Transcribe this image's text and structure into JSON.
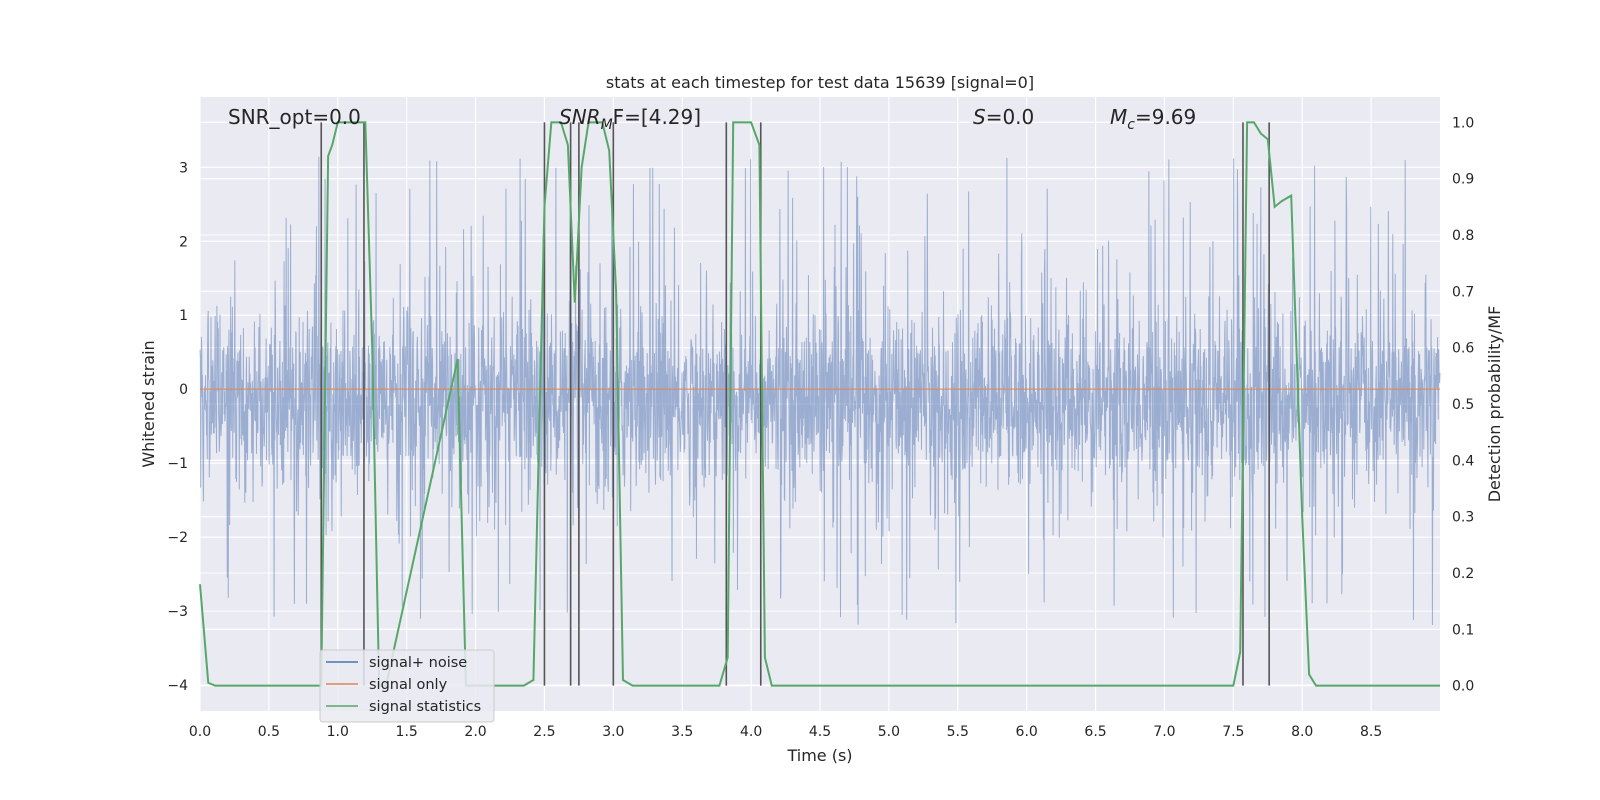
{
  "chart_data": {
    "type": "line",
    "title": "stats at each timestep for test data 15639 [signal=0]",
    "xlabel": "Time (s)",
    "ylabel_left": "Whitened strain",
    "ylabel_right": "Detection probability/MF",
    "xlim": [
      0,
      9.0
    ],
    "ylim_left": [
      -4.35,
      3.95
    ],
    "ylim_right": [
      -0.045,
      1.045
    ],
    "x_ticks": [
      "0.0",
      "0.5",
      "1.0",
      "1.5",
      "2.0",
      "2.5",
      "3.0",
      "3.5",
      "4.0",
      "4.5",
      "5.0",
      "5.5",
      "6.0",
      "6.5",
      "7.0",
      "7.5",
      "8.0",
      "8.5"
    ],
    "y_left_ticks": [
      "3",
      "2",
      "1",
      "0",
      "−1",
      "−2",
      "−3",
      "−4"
    ],
    "y_right_ticks": [
      "1.0",
      "0.9",
      "0.8",
      "0.7",
      "0.6",
      "0.5",
      "0.4",
      "0.3",
      "0.2",
      "0.1",
      "0.0"
    ],
    "grid": true,
    "legend_placement": "lower-left",
    "annotations": {
      "snr_opt_label": "SNR_opt=0.0",
      "snr_mf_label": "F=[4.29]",
      "snr_mf_symbol": "SNR",
      "snr_mf_sub": "M",
      "s_label": "=0.0",
      "s_symbol": "S",
      "mc_label": "=9.69",
      "mc_symbol": "M",
      "mc_sub": "c"
    },
    "series": [
      {
        "name": "signal+ noise",
        "color": "#4c72b0",
        "summary": {
          "mean": 0.0,
          "envelope_low": -1.7,
          "envelope_high": 1.3,
          "peak_max": 3.3,
          "peak_min": -3.6
        }
      },
      {
        "name": "signal only",
        "color": "#dd8452",
        "x": [
          0,
          9.0
        ],
        "y": [
          0,
          0
        ]
      },
      {
        "name": "signal statistics",
        "color": "#55a868",
        "axis": "right",
        "x": [
          0.0,
          0.06,
          0.11,
          0.88,
          0.93,
          0.96,
          1.0,
          1.05,
          1.1,
          1.15,
          1.2,
          1.25,
          1.3,
          1.35,
          1.87,
          1.93,
          2.0,
          2.35,
          2.42,
          2.5,
          2.55,
          2.62,
          2.67,
          2.72,
          2.77,
          2.82,
          2.87,
          2.92,
          2.97,
          3.02,
          3.07,
          3.14,
          3.2,
          3.77,
          3.83,
          3.87,
          3.92,
          4.0,
          4.06,
          4.1,
          4.15,
          4.2,
          7.5,
          7.55,
          7.6,
          7.65,
          7.7,
          7.75,
          7.8,
          7.85,
          7.92,
          8.0,
          8.05,
          8.1,
          8.15,
          9.0
        ],
        "y": [
          0.18,
          0.005,
          0.0,
          0.0,
          0.94,
          0.96,
          1.0,
          1.0,
          1.0,
          1.0,
          1.0,
          0.6,
          0.0,
          0.0,
          0.58,
          0.0,
          0.0,
          0.0,
          0.01,
          0.85,
          1.0,
          1.0,
          0.96,
          0.68,
          0.92,
          1.0,
          1.0,
          1.0,
          0.95,
          0.7,
          0.01,
          0.0,
          0.0,
          0.0,
          0.05,
          1.0,
          1.0,
          1.0,
          0.96,
          0.05,
          0.0,
          0.0,
          0.0,
          0.06,
          1.0,
          1.0,
          0.98,
          0.97,
          0.85,
          0.86,
          0.87,
          0.3,
          0.02,
          0.0,
          0.0,
          0.0
        ]
      }
    ],
    "vertical_markers_x": [
      0.88,
      1.19,
      2.5,
      2.69,
      2.75,
      3.0,
      3.82,
      4.07,
      7.57,
      7.76
    ]
  },
  "legend": {
    "items": [
      {
        "label": "signal+ noise",
        "color": "#4c72b0"
      },
      {
        "label": "signal only",
        "color": "#dd8452"
      },
      {
        "label": "signal statistics",
        "color": "#55a868"
      }
    ]
  }
}
